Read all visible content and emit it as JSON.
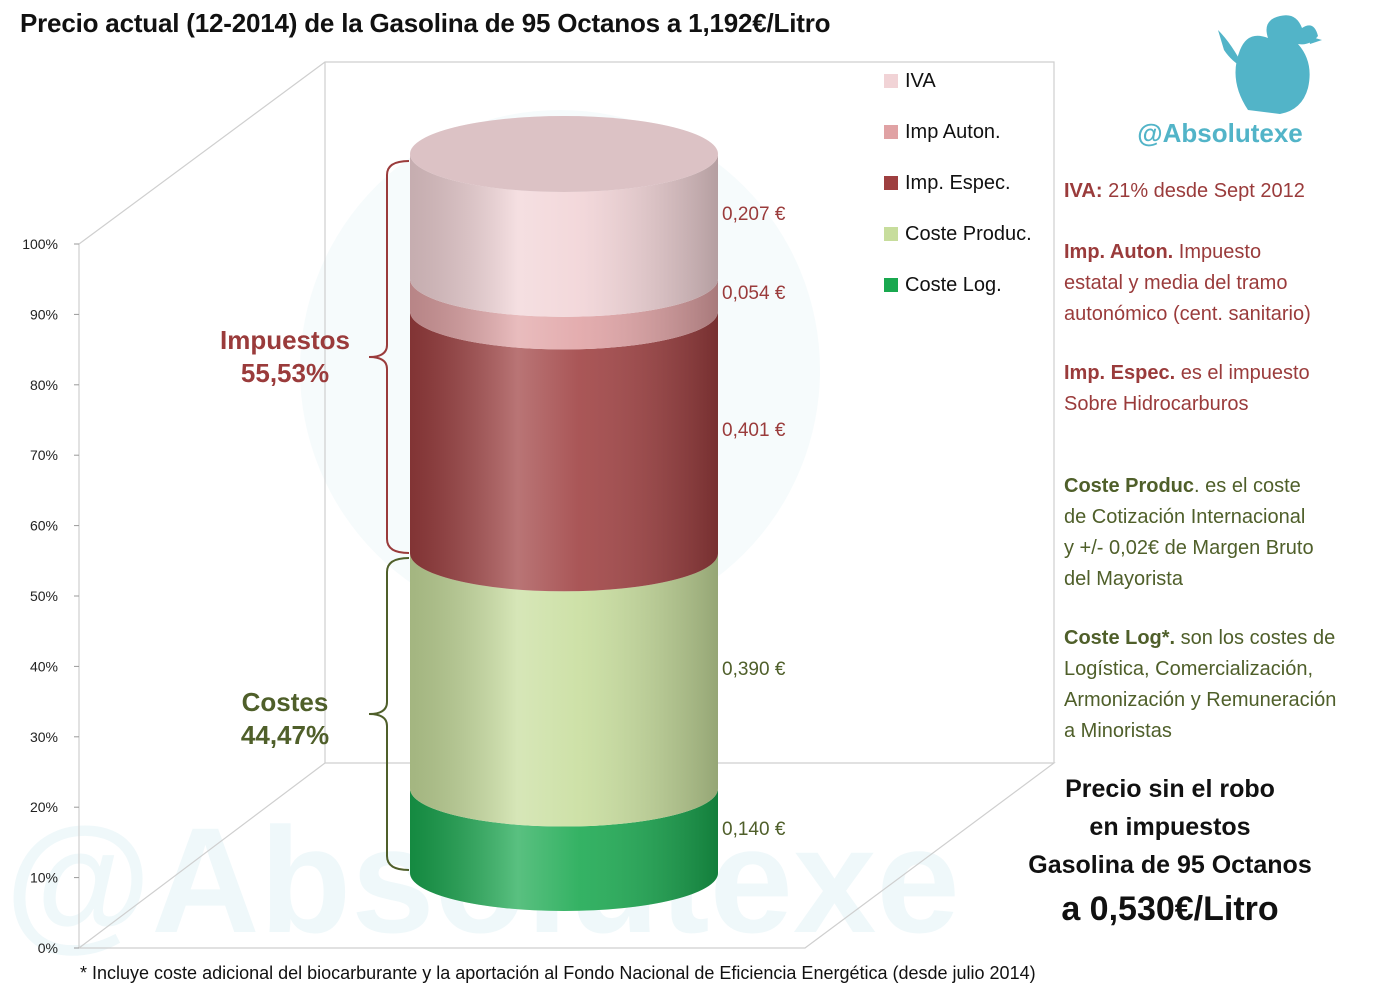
{
  "title": "Precio actual (12-2014) de la Gasolina de 95 Octanos a 1,192€/Litro",
  "handle": "@Absolutexe",
  "watermark": "@Absolutexe",
  "colors": {
    "iva": "#f1d3d6",
    "imp_auton": "#e0a2a4",
    "imp_espec": "#9e3f40",
    "coste_produc": "#c7dd9c",
    "coste_log": "#19a84f",
    "taxes_text": "#9a3b3b",
    "costs_text": "#4f5f2a",
    "handle": "#52b4c8"
  },
  "legend": [
    {
      "label": "IVA",
      "color": "#f1d3d6"
    },
    {
      "label": "Imp Auton.",
      "color": "#e0a2a4"
    },
    {
      "label": "Imp. Espec.",
      "color": "#9e3f40"
    },
    {
      "label": "Coste Produc.",
      "color": "#c7dd9c"
    },
    {
      "label": "Coste Log.",
      "color": "#19a84f"
    }
  ],
  "groups": {
    "taxes": {
      "label": "Impuestos",
      "percent": "55,53%"
    },
    "costs": {
      "label": "Costes",
      "percent": "44,47%"
    }
  },
  "notes": {
    "iva_bold": "IVA:",
    "iva_text": " 21% desde Sept 2012",
    "auton_bold": "Imp. Auton.",
    "auton_text1": " Impuesto",
    "auton_text2": "estatal y media del tramo",
    "auton_text3": "autonómico (cent. sanitario)",
    "espec_bold": "Imp. Espec.",
    "espec_text1": " es el impuesto",
    "espec_text2": "Sobre Hidrocarburos",
    "produc_bold": "Coste Produc",
    "produc_text1": ". es el coste",
    "produc_text2": "de Cotización Internacional",
    "produc_text3": "y +/- 0,02€ de Margen Bruto",
    "produc_text4": "del Mayorista",
    "log_bold": "Coste Log*.",
    "log_text1": " son los costes de",
    "log_text2": "Logística, Comercialización,",
    "log_text3": "Armonización y Remuneración",
    "log_text4": "a Minoristas"
  },
  "bottom_note": {
    "line1": "Precio sin el robo",
    "line2": "en impuestos",
    "line3": "Gasolina de 95 Octanos",
    "price": "a 0,530€/Litro"
  },
  "footnote": "* Incluye coste adicional del biocarburante y la aportación al Fondo Nacional de Eficiencia Energética  (desde julio 2014)",
  "chart_data": {
    "type": "bar",
    "stacked": true,
    "three_d": true,
    "categories": [
      ""
    ],
    "series": [
      {
        "name": "Coste Log.",
        "values": [
          0.14
        ],
        "label": "0,140 €"
      },
      {
        "name": "Coste Produc.",
        "values": [
          0.39
        ],
        "label": "0,390 €"
      },
      {
        "name": "Imp. Espec.",
        "values": [
          0.401
        ],
        "label": "0,401 €"
      },
      {
        "name": "Imp Auton.",
        "values": [
          0.054
        ],
        "label": "0,054 €"
      },
      {
        "name": "IVA",
        "values": [
          0.207
        ],
        "label": "0,207 €"
      }
    ],
    "y_ticks": [
      "0%",
      "10%",
      "20%",
      "30%",
      "40%",
      "50%",
      "60%",
      "70%",
      "80%",
      "90%",
      "100%"
    ],
    "ylim": [
      0,
      100
    ],
    "legend_position": "top-right",
    "grid": false
  }
}
